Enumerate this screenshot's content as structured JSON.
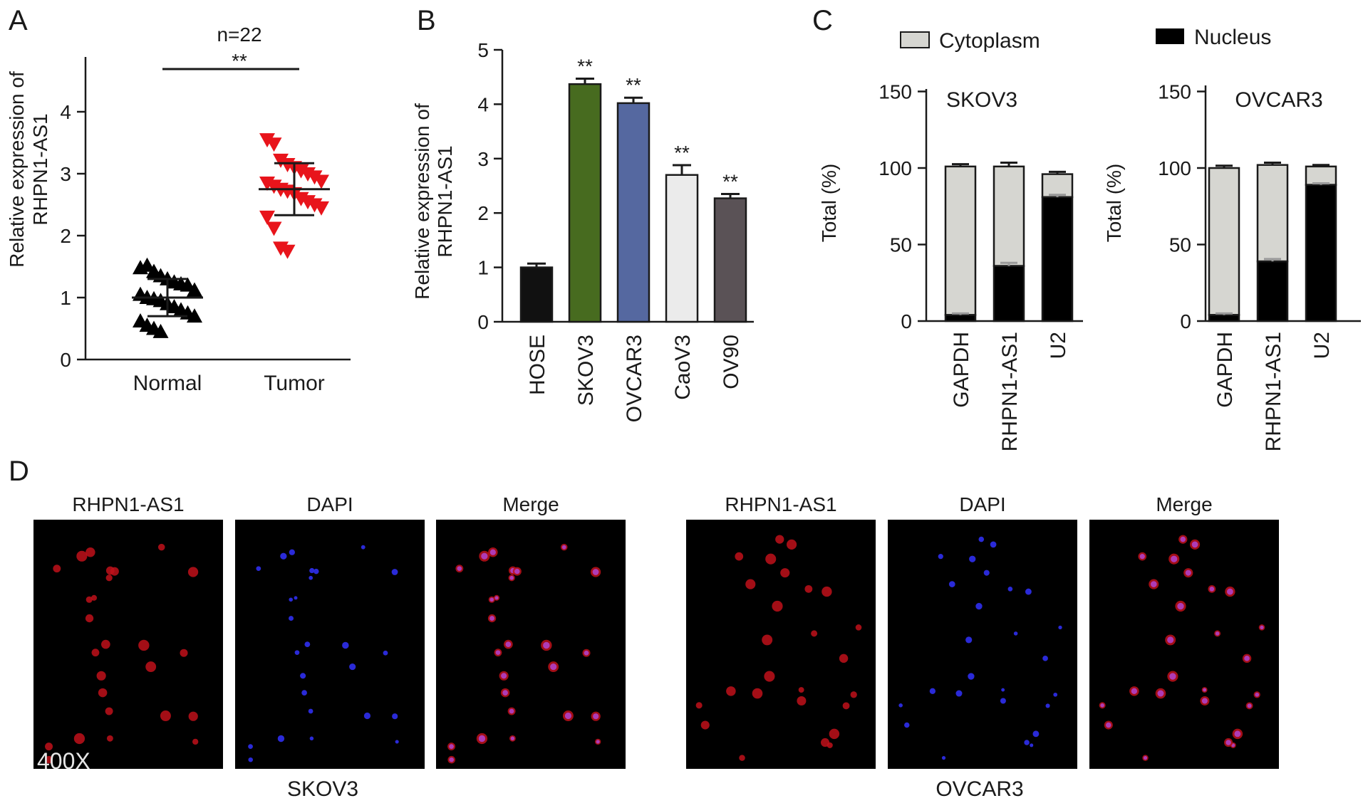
{
  "panels": {
    "A": {
      "letter": "A",
      "chart_data": {
        "type": "scatter",
        "ylabel": [
          "Relative expression of",
          "RHPN1-AS1"
        ],
        "ylim": [
          0,
          4
        ],
        "yticks": [
          "0",
          "1",
          "2",
          "3",
          "4"
        ],
        "categories": [
          "Normal",
          "Tumor"
        ],
        "annotation": "n=22",
        "significance": "**",
        "marker_colors": [
          "#000000",
          "#e8141b"
        ],
        "series": [
          {
            "name": "Normal",
            "color": "#000000",
            "marker": "triangle-up",
            "mean": 1.0,
            "sd": 0.3,
            "values": [
              1.48,
              1.52,
              1.42,
              1.35,
              1.3,
              1.25,
              1.22,
              1.2,
              1.12,
              1.05,
              1.0,
              0.98,
              0.95,
              0.9,
              0.85,
              0.8,
              0.75,
              0.7,
              0.62,
              0.55,
              0.5,
              0.45
            ]
          },
          {
            "name": "Tumor",
            "color": "#e8141b",
            "marker": "triangle-down",
            "mean": 2.75,
            "sd": 0.42,
            "values": [
              3.55,
              3.48,
              3.22,
              3.15,
              3.1,
              3.05,
              3.0,
              2.95,
              2.88,
              2.85,
              2.8,
              2.75,
              2.72,
              2.68,
              2.6,
              2.55,
              2.5,
              2.45,
              2.3,
              2.12,
              1.8,
              1.75
            ]
          }
        ]
      }
    },
    "B": {
      "letter": "B",
      "chart_data": {
        "type": "bar",
        "ylabel": [
          "Relative expression of",
          "RHPN1-AS1"
        ],
        "ylim": [
          0,
          5
        ],
        "yticks": [
          "0",
          "1",
          "2",
          "3",
          "4",
          "5"
        ],
        "categories": [
          "HOSE",
          "SKOV3",
          "OVCAR3",
          "CaoV3",
          "OV90"
        ],
        "values": [
          1.0,
          4.37,
          4.02,
          2.7,
          2.27
        ],
        "errors": [
          0.07,
          0.1,
          0.1,
          0.18,
          0.08
        ],
        "significance": [
          "",
          "**",
          "**",
          "**",
          "**"
        ],
        "colors": [
          "#111111",
          "#476b1f",
          "#5568a0",
          "#ebebeb",
          "#5a5256"
        ]
      }
    },
    "C": {
      "letter": "C",
      "legend": [
        {
          "label": "Cytoplasm",
          "color": "#d6d6d1"
        },
        {
          "label": "Nucleus",
          "color": "#000000"
        }
      ],
      "chart_data": [
        {
          "type": "bar",
          "stacked": true,
          "title": "SKOV3",
          "ylabel": "Total (%)",
          "ylim": [
            0,
            150
          ],
          "yticks": [
            "0",
            "50",
            "100",
            "150"
          ],
          "categories": [
            "GAPDH",
            "RHPN1-AS1",
            "U2"
          ],
          "series": [
            {
              "name": "Nucleus",
              "values": [
                4,
                36,
                81
              ],
              "errors": [
                1,
                2,
                1.5
              ]
            },
            {
              "name": "Cytoplasm",
              "values": [
                97,
                65,
                15
              ],
              "errors": [
                1.5,
                2.5,
                1.5
              ]
            }
          ]
        },
        {
          "type": "bar",
          "stacked": true,
          "title": "OVCAR3",
          "ylabel": "Total (%)",
          "ylim": [
            0,
            150
          ],
          "yticks": [
            "0",
            "50",
            "100",
            "150"
          ],
          "categories": [
            "GAPDH",
            "RHPN1-AS1",
            "U2"
          ],
          "series": [
            {
              "name": "Nucleus",
              "values": [
                4,
                39,
                89
              ],
              "errors": [
                1,
                1.5,
                1
              ]
            },
            {
              "name": "Cytoplasm",
              "values": [
                96,
                63,
                12
              ],
              "errors": [
                1.5,
                1.5,
                1
              ]
            }
          ]
        }
      ]
    },
    "D": {
      "letter": "D",
      "magnification": "400X",
      "groups": [
        {
          "cell_line": "SKOV3",
          "images": [
            {
              "label": "RHPN1-AS1",
              "stain": "red"
            },
            {
              "label": "DAPI",
              "stain": "blue"
            },
            {
              "label": "Merge",
              "stain": "merge"
            }
          ]
        },
        {
          "cell_line": "OVCAR3",
          "images": [
            {
              "label": "RHPN1-AS1",
              "stain": "red"
            },
            {
              "label": "DAPI",
              "stain": "blue"
            },
            {
              "label": "Merge",
              "stain": "merge"
            }
          ]
        }
      ]
    }
  }
}
